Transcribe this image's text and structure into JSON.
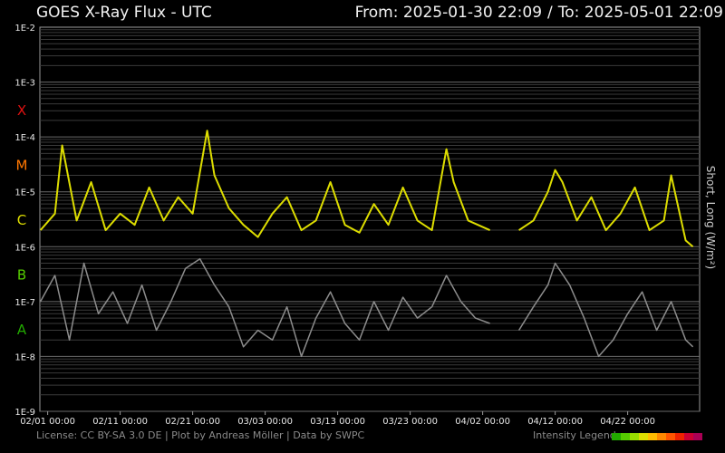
{
  "header": {
    "title": "GOES X-Ray Flux - UTC",
    "from_label": "From: 2025-01-30 22:09",
    "separator": "/",
    "to_label": "To: 2025-05-01 22:09"
  },
  "footer": {
    "credits": "License: CC BY-SA 3.0 DE | Plot by Andreas Möller | Data by SWPC",
    "legend_label": "Intensity Legend",
    "legend_colors": [
      "#22aa00",
      "#55cc00",
      "#99dd00",
      "#dddd00",
      "#ffbb00",
      "#ff8800",
      "#ff5500",
      "#ee2200",
      "#cc0033",
      "#aa0055"
    ]
  },
  "chart_data": {
    "type": "line",
    "title": "GOES X-Ray Flux - UTC",
    "ylabel": "Short, Long (W/m²)",
    "yscale": "log",
    "ylim": [
      1e-09,
      0.01
    ],
    "y_ticks": [
      "1E-9",
      "1E-8",
      "1E-7",
      "1E-6",
      "1E-5",
      "1E-4",
      "1E-3",
      "1E-2"
    ],
    "x_range": [
      "2025-01-30 22:09",
      "2025-05-01 22:09"
    ],
    "x_ticks": [
      {
        "date": "2025-02-01",
        "label": "02/01 00:00"
      },
      {
        "date": "2025-02-11",
        "label": "02/11 00:00"
      },
      {
        "date": "2025-02-21",
        "label": "02/21 00:00"
      },
      {
        "date": "2025-03-03",
        "label": "03/03 00:00"
      },
      {
        "date": "2025-03-13",
        "label": "03/13 00:00"
      },
      {
        "date": "2025-03-23",
        "label": "03/23 00:00"
      },
      {
        "date": "2025-04-02",
        "label": "04/02 00:00"
      },
      {
        "date": "2025-04-12",
        "label": "04/12 00:00"
      },
      {
        "date": "2025-04-22",
        "label": "04/22 00:00"
      }
    ],
    "flare_classes": [
      {
        "label": "X",
        "color": "#dd1111"
      },
      {
        "label": "M",
        "color": "#ff7700"
      },
      {
        "label": "C",
        "color": "#dddd00"
      },
      {
        "label": "B",
        "color": "#55cc00"
      },
      {
        "label": "A",
        "color": "#22aa00"
      }
    ],
    "grid": true,
    "series": [
      {
        "name": "Long",
        "color": "#dddd00",
        "points": [
          [
            "2025-01-31",
            2e-06
          ],
          [
            "2025-02-02",
            4e-06
          ],
          [
            "2025-02-03",
            7e-05
          ],
          [
            "2025-02-05",
            3e-06
          ],
          [
            "2025-02-07",
            1.5e-05
          ],
          [
            "2025-02-09",
            2e-06
          ],
          [
            "2025-02-11",
            4e-06
          ],
          [
            "2025-02-13",
            2.5e-06
          ],
          [
            "2025-02-15",
            1.2e-05
          ],
          [
            "2025-02-17",
            3e-06
          ],
          [
            "2025-02-19",
            8e-06
          ],
          [
            "2025-02-21",
            4e-06
          ],
          [
            "2025-02-23",
            0.00013
          ],
          [
            "2025-02-24",
            2e-05
          ],
          [
            "2025-02-26",
            5e-06
          ],
          [
            "2025-02-28",
            2.5e-06
          ],
          [
            "2025-03-02",
            1.5e-06
          ],
          [
            "2025-03-04",
            4e-06
          ],
          [
            "2025-03-06",
            8e-06
          ],
          [
            "2025-03-08",
            2e-06
          ],
          [
            "2025-03-10",
            3e-06
          ],
          [
            "2025-03-12",
            1.5e-05
          ],
          [
            "2025-03-14",
            2.5e-06
          ],
          [
            "2025-03-16",
            1.8e-06
          ],
          [
            "2025-03-18",
            6e-06
          ],
          [
            "2025-03-20",
            2.5e-06
          ],
          [
            "2025-03-22",
            1.2e-05
          ],
          [
            "2025-03-24",
            3e-06
          ],
          [
            "2025-03-26",
            2e-06
          ],
          [
            "2025-03-28",
            6e-05
          ],
          [
            "2025-03-29",
            1.5e-05
          ],
          [
            "2025-03-31",
            3e-06
          ],
          [
            "2025-04-03",
            2e-06
          ],
          [
            "2025-04-07",
            2e-06
          ],
          [
            "2025-04-09",
            3e-06
          ],
          [
            "2025-04-11",
            1e-05
          ],
          [
            "2025-04-12",
            2.5e-05
          ],
          [
            "2025-04-13",
            1.5e-05
          ],
          [
            "2025-04-15",
            3e-06
          ],
          [
            "2025-04-17",
            8e-06
          ],
          [
            "2025-04-19",
            2e-06
          ],
          [
            "2025-04-21",
            4e-06
          ],
          [
            "2025-04-23",
            1.2e-05
          ],
          [
            "2025-04-25",
            2e-06
          ],
          [
            "2025-04-27",
            3e-06
          ],
          [
            "2025-04-28",
            2e-05
          ],
          [
            "2025-04-30",
            1.3e-06
          ],
          [
            "2025-05-01",
            1e-06
          ]
        ]
      },
      {
        "name": "Short",
        "color": "#8c8c8c",
        "points": [
          [
            "2025-01-31",
            1e-07
          ],
          [
            "2025-02-02",
            3e-07
          ],
          [
            "2025-02-04",
            2e-08
          ],
          [
            "2025-02-06",
            5e-07
          ],
          [
            "2025-02-08",
            6e-08
          ],
          [
            "2025-02-10",
            1.5e-07
          ],
          [
            "2025-02-12",
            4e-08
          ],
          [
            "2025-02-14",
            2e-07
          ],
          [
            "2025-02-16",
            3e-08
          ],
          [
            "2025-02-18",
            1e-07
          ],
          [
            "2025-02-20",
            4e-07
          ],
          [
            "2025-02-22",
            6e-07
          ],
          [
            "2025-02-24",
            2e-07
          ],
          [
            "2025-02-26",
            8e-08
          ],
          [
            "2025-02-28",
            1.5e-08
          ],
          [
            "2025-03-02",
            3e-08
          ],
          [
            "2025-03-04",
            2e-08
          ],
          [
            "2025-03-06",
            8e-08
          ],
          [
            "2025-03-08",
            1e-08
          ],
          [
            "2025-03-10",
            5e-08
          ],
          [
            "2025-03-12",
            1.5e-07
          ],
          [
            "2025-03-14",
            4e-08
          ],
          [
            "2025-03-16",
            2e-08
          ],
          [
            "2025-03-18",
            1e-07
          ],
          [
            "2025-03-20",
            3e-08
          ],
          [
            "2025-03-22",
            1.2e-07
          ],
          [
            "2025-03-24",
            5e-08
          ],
          [
            "2025-03-26",
            8e-08
          ],
          [
            "2025-03-28",
            3e-07
          ],
          [
            "2025-03-30",
            1e-07
          ],
          [
            "2025-04-01",
            5e-08
          ],
          [
            "2025-04-03",
            4e-08
          ],
          [
            "2025-04-07",
            3e-08
          ],
          [
            "2025-04-09",
            8e-08
          ],
          [
            "2025-04-11",
            2e-07
          ],
          [
            "2025-04-12",
            5e-07
          ],
          [
            "2025-04-14",
            2e-07
          ],
          [
            "2025-04-16",
            5e-08
          ],
          [
            "2025-04-18",
            1e-08
          ],
          [
            "2025-04-20",
            2e-08
          ],
          [
            "2025-04-22",
            6e-08
          ],
          [
            "2025-04-24",
            1.5e-07
          ],
          [
            "2025-04-26",
            3e-08
          ],
          [
            "2025-04-28",
            1e-07
          ],
          [
            "2025-04-30",
            2e-08
          ],
          [
            "2025-05-01",
            1.5e-08
          ]
        ]
      }
    ],
    "data_gap": [
      "2025-04-03",
      "2025-04-07"
    ]
  }
}
